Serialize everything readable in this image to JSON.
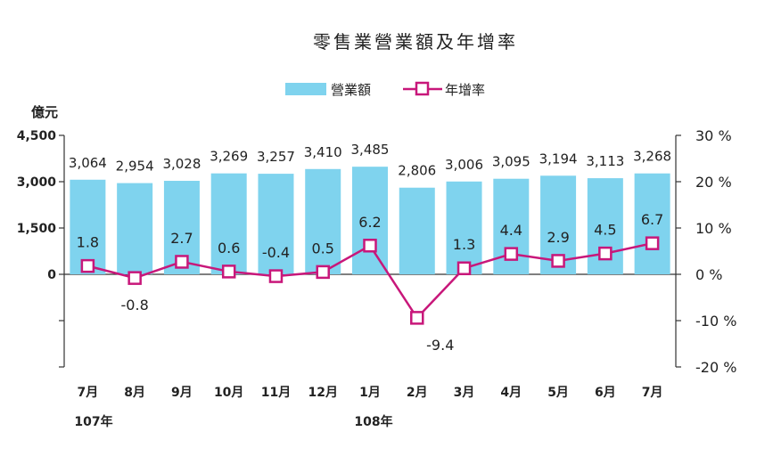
{
  "chart_data": {
    "type": "bar",
    "title": "零售業營業額及年增率",
    "ylabel": "億元",
    "ylim": [
      -3000,
      4500
    ],
    "y_ticks": [
      "4,500",
      "3,000",
      "1,500",
      "0"
    ],
    "y2lim": [
      -20,
      30
    ],
    "y2_ticks": [
      "30 %",
      "20 %",
      "10 %",
      "0 %",
      "-10 %",
      "-20 %"
    ],
    "categories": [
      "7月",
      "8月",
      "9月",
      "10月",
      "11月",
      "12月",
      "1月",
      "2月",
      "3月",
      "4月",
      "5月",
      "6月",
      "7月"
    ],
    "year_labels": [
      "107年",
      "108年"
    ],
    "series": [
      {
        "name": "營業額",
        "type": "bar",
        "color": "#7fd3ee",
        "values": [
          3064,
          2954,
          3028,
          3269,
          3257,
          3410,
          3485,
          2806,
          3006,
          3095,
          3194,
          3113,
          3268
        ],
        "labels": [
          "3,064",
          "2,954",
          "3,028",
          "3,269",
          "3,257",
          "3,410",
          "3,485",
          "2,806",
          "3,006",
          "3,095",
          "3,194",
          "3,113",
          "3,268"
        ]
      },
      {
        "name": "年增率",
        "type": "line",
        "axis": "right",
        "color": "#c8177a",
        "values": [
          1.8,
          -0.8,
          2.7,
          0.6,
          -0.4,
          0.5,
          6.2,
          -9.4,
          1.3,
          4.4,
          2.9,
          4.5,
          6.7
        ],
        "labels": [
          "1.8",
          "-0.8",
          "2.7",
          "0.6",
          "-0.4",
          "0.5",
          "6.2",
          "-9.4",
          "1.3",
          "4.4",
          "2.9",
          "4.5",
          "6.7"
        ]
      }
    ],
    "legend_position": "top-center",
    "grid": false
  }
}
